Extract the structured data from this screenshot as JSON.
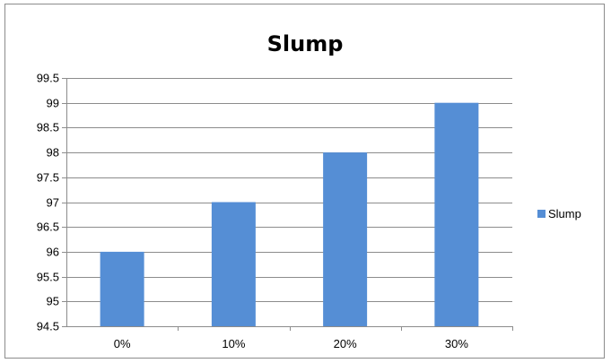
{
  "chart_data": {
    "type": "bar",
    "title": "Slump",
    "xlabel": "",
    "ylabel": "",
    "categories": [
      "0%",
      "10%",
      "20%",
      "30%"
    ],
    "series": [
      {
        "name": "Slump",
        "values": [
          96,
          97,
          98,
          99
        ],
        "color": "#558ed5"
      }
    ],
    "ylim": [
      94.5,
      99.5
    ],
    "yticks": [
      "94.5",
      "95",
      "95.5",
      "96",
      "96.5",
      "97",
      "97.5",
      "98",
      "98.5",
      "99",
      "99.5"
    ],
    "grid": true,
    "legend_position": "right"
  }
}
